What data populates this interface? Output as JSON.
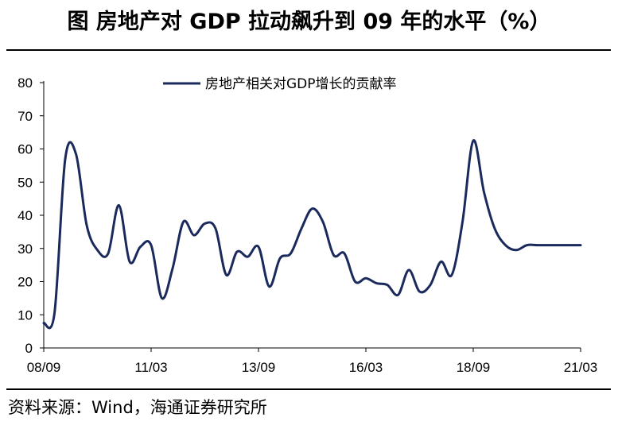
{
  "header": {
    "title": "图  房地产对 GDP 拉动飙升到 09 年的水平（%）"
  },
  "footer": {
    "source": "资料来源：Wind，海通证券研究所"
  },
  "colors": {
    "series": "#1b2a5c",
    "axis": "#000000",
    "background": "#ffffff"
  },
  "chart_data": {
    "type": "line",
    "title": "房地产对 GDP 拉动飙升到 09 年的水平（%）",
    "xlabel": "",
    "ylabel": "",
    "ylim": [
      0,
      80
    ],
    "yticks": [
      0,
      10,
      20,
      30,
      40,
      50,
      60,
      70,
      80
    ],
    "grid": false,
    "legend_position": "top-center",
    "x_tick_labels": [
      "08/09",
      "11/03",
      "13/09",
      "16/03",
      "18/09",
      "21/03"
    ],
    "x_tick_index": [
      0,
      10,
      20,
      30,
      40,
      50
    ],
    "x": [
      "08/09",
      "08/12",
      "09/03",
      "09/06",
      "09/09",
      "09/12",
      "10/03",
      "10/06",
      "10/09",
      "10/12",
      "11/03",
      "11/06",
      "11/09",
      "11/12",
      "12/03",
      "12/06",
      "12/09",
      "12/12",
      "13/03",
      "13/06",
      "13/09",
      "13/12",
      "14/03",
      "14/06",
      "14/09",
      "14/12",
      "15/03",
      "15/06",
      "15/09",
      "15/12",
      "16/03",
      "16/06",
      "16/09",
      "16/12",
      "17/03",
      "17/06",
      "17/09",
      "17/12",
      "18/03",
      "18/06",
      "18/09",
      "18/12",
      "19/03",
      "19/06",
      "19/09",
      "19/12",
      "20/03",
      "20/06",
      "20/09",
      "20/12",
      "21/03"
    ],
    "series": [
      {
        "name": "房地产相关对GDP增长的贡献率",
        "values": [
          7.5,
          10.5,
          57.0,
          58.5,
          37.0,
          29.5,
          28.5,
          43.0,
          26.0,
          30.5,
          31.0,
          15.0,
          24.0,
          38.0,
          34.0,
          37.5,
          36.0,
          22.0,
          29.0,
          27.5,
          30.5,
          18.5,
          27.0,
          28.5,
          36.0,
          42.0,
          38.0,
          28.0,
          28.5,
          20.0,
          21.0,
          19.5,
          19.0,
          16.0,
          23.5,
          17.0,
          19.0,
          26.0,
          22.0,
          38.0,
          62.5,
          47.0,
          36.0,
          31.0,
          29.5,
          31.0,
          31.0,
          31.0,
          31.0,
          31.0,
          31.0
        ]
      }
    ]
  }
}
